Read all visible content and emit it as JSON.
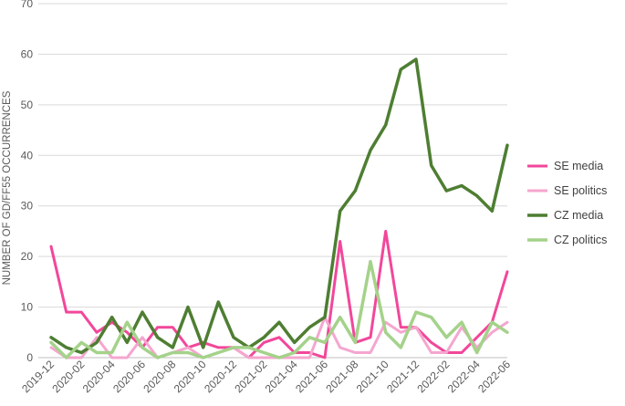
{
  "chart_data": {
    "type": "line",
    "title": "",
    "xlabel": "",
    "ylabel": "NUMBER OF GD/FF55 OCCURRENCES",
    "ylim": [
      0,
      70
    ],
    "yticks": [
      0,
      10,
      20,
      30,
      40,
      50,
      60,
      70
    ],
    "grid": "horizontal",
    "legend": "right",
    "x": [
      "2019-12",
      "2020-01",
      "2020-02",
      "2020-03",
      "2020-04",
      "2020-05",
      "2020-06",
      "2020-07",
      "2020-08",
      "2020-09",
      "2020-10",
      "2020-11",
      "2020-12",
      "2021-01",
      "2021-02",
      "2021-03",
      "2021-04",
      "2021-05",
      "2021-06",
      "2021-07",
      "2021-08",
      "2021-09",
      "2021-10",
      "2021-11",
      "2021-12",
      "2022-01",
      "2022-02",
      "2022-03",
      "2022-04",
      "2022-05",
      "2022-06"
    ],
    "x_tick_labels": [
      "2019-12",
      "2020-02",
      "2020-04",
      "2020-06",
      "2020-08",
      "2020-10",
      "2020-12",
      "2021-02",
      "2021-04",
      "2021-06",
      "2021-08",
      "2021-10",
      "2021-12",
      "2022-02",
      "2022-04",
      "2022-06"
    ],
    "series": [
      {
        "name": "SE media",
        "color": "#f2479a",
        "width": 3,
        "values": [
          22,
          9,
          9,
          5,
          7,
          5,
          2,
          6,
          6,
          2,
          3,
          2,
          2,
          0,
          3,
          4,
          1,
          1,
          0,
          23,
          3,
          4,
          25,
          6,
          6,
          3,
          1,
          1,
          4,
          7,
          17
        ]
      },
      {
        "name": "SE politics",
        "color": "#f5a6cf",
        "width": 3,
        "values": [
          2,
          0,
          0,
          4,
          0,
          0,
          4,
          0,
          1,
          2,
          0,
          1,
          2,
          0,
          0,
          0,
          0,
          0,
          8,
          2,
          1,
          1,
          7,
          5,
          6,
          1,
          1,
          6,
          2,
          5,
          7
        ]
      },
      {
        "name": "CZ media",
        "color": "#4e7e32",
        "width": 3.5,
        "values": [
          4,
          2,
          1,
          3,
          8,
          3,
          9,
          4,
          2,
          10,
          2,
          11,
          4,
          2,
          4,
          7,
          3,
          6,
          8,
          29,
          33,
          41,
          46,
          57,
          59,
          38,
          33,
          34,
          32,
          29,
          42
        ]
      },
      {
        "name": "CZ politics",
        "color": "#a4d28a",
        "width": 3.5,
        "values": [
          3,
          0,
          3,
          1,
          1,
          7,
          2,
          0,
          1,
          1,
          0,
          1,
          2,
          2,
          1,
          0,
          1,
          4,
          3,
          8,
          3,
          19,
          5,
          2,
          9,
          8,
          4,
          7,
          1,
          7,
          5
        ]
      }
    ]
  }
}
